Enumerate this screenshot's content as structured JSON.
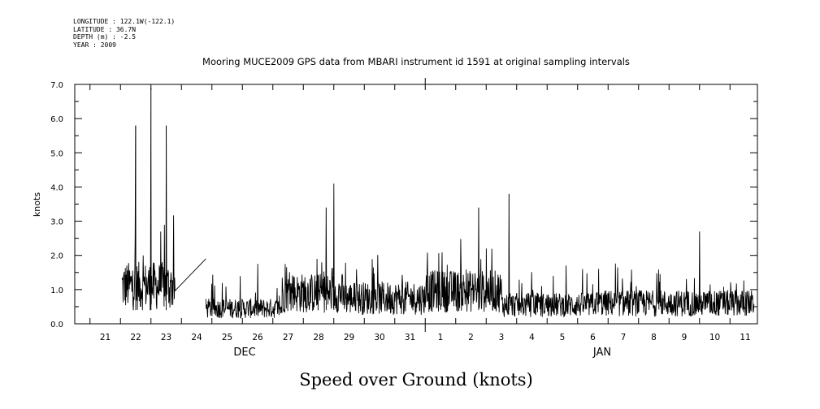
{
  "header": {
    "longitude": "LONGITUDE : 122.1W(-122.1)",
    "latitude": "LATITUDE : 36.7N",
    "depth": "DEPTH (m) : -2.5",
    "year": "YEAR : 2009"
  },
  "chart_data": {
    "type": "line",
    "title": "Mooring MUCE2009 GPS data from MBARI instrument id 1591 at original sampling intervals",
    "xlabel": "Speed over Ground (knots)",
    "ylabel": "knots",
    "ylim": [
      0.0,
      7.0
    ],
    "y_ticks": [
      "0.0",
      "1.0",
      "2.0",
      "3.0",
      "4.0",
      "5.0",
      "6.0",
      "7.0"
    ],
    "x_tick_labels": [
      "21",
      "22",
      "23",
      "24",
      "25",
      "26",
      "27",
      "28",
      "29",
      "30",
      "31",
      "1",
      "2",
      "3",
      "4",
      "5",
      "6",
      "7",
      "8",
      "9",
      "10",
      "11"
    ],
    "month_labels": [
      "DEC",
      "JAN"
    ],
    "series": [
      {
        "color": "#000000",
        "x": [
          "Dec 21 12:00",
          "Dec 22 00:00",
          "Dec 22 06:00",
          "Dec 22 12:00",
          "Dec 23 00:00",
          "Dec 23 06:00",
          "Dec 23 12:00",
          "Dec 24 06:00",
          "Dec 24 12:00",
          "Dec 25 12:00",
          "Dec 26 12:00",
          "Dec 27 12:00",
          "Dec 28 06:00",
          "Dec 28 12:00",
          "Dec 29 12:00",
          "Dec 30 12:00",
          "Dec 31 12:00",
          "Jan 1 12:00",
          "Jan 2 06:00",
          "Jan 2 12:00",
          "Jan 3 06:00",
          "Jan 4 12:00",
          "Jan 5 12:00",
          "Jan 6 12:00",
          "Jan 7 06:00",
          "Jan 7 12:00",
          "Jan 8 12:00",
          "Jan 9 12:00",
          "Jan 10 12:00",
          "Jan 11 12:00"
        ],
        "values": [
          1.0,
          5.8,
          2.0,
          6.9,
          5.8,
          1.3,
          0.7,
          1.9,
          0.6,
          0.5,
          0.4,
          1.0,
          3.4,
          4.1,
          1.3,
          1.0,
          1.0,
          0.7,
          3.4,
          2.2,
          3.8,
          0.8,
          0.7,
          0.5,
          0.6,
          0.9,
          0.8,
          2.7,
          1.1,
          0.8
        ]
      }
    ]
  }
}
